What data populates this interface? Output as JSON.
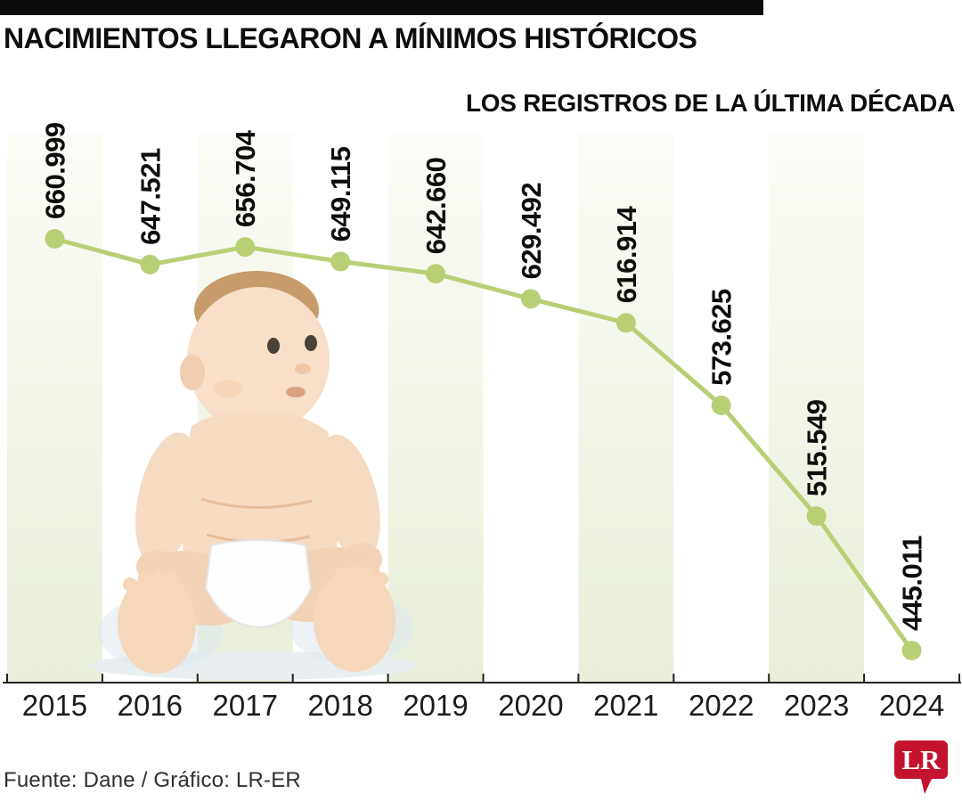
{
  "page": {
    "title": "NACIMIENTOS LLEGARON A MÍNIMOS HISTÓRICOS",
    "subtitle": "LOS REGISTROS DE LA ÚLTIMA DÉCADA"
  },
  "footer": {
    "source": "Fuente: Dane / Gráfico: LR-ER",
    "logo_text": "LR"
  },
  "colors": {
    "top_bar": "#0b0b0b",
    "line": "#b9cf76",
    "stripe_top": "#fbfcf6",
    "stripe_bottom": "#e9efda",
    "axis": "#222222",
    "logo_red": "#c3132e"
  },
  "chart_data": {
    "type": "line",
    "title": "NACIMIENTOS LLEGARON A MÍNIMOS HISTÓRICOS",
    "subtitle": "LOS REGISTROS DE LA ÚLTIMA DÉCADA",
    "categories": [
      "2015",
      "2016",
      "2017",
      "2018",
      "2019",
      "2020",
      "2021",
      "2022",
      "2023",
      "2024"
    ],
    "values": [
      660999,
      647521,
      656704,
      649115,
      642660,
      629492,
      616914,
      573625,
      515549,
      445011
    ],
    "point_labels": [
      "660.999",
      "647.521",
      "656.704",
      "649.115",
      "642.660",
      "629.492",
      "616.914",
      "573.625",
      "515.549",
      "445.011"
    ],
    "xlabel": "",
    "ylabel": "",
    "ylim": [
      430000,
      675000
    ],
    "legend": "none",
    "grid": "alternating-vertical-stripes",
    "striped_categories": [
      "2015",
      "2017",
      "2019",
      "2021",
      "2023"
    ]
  }
}
